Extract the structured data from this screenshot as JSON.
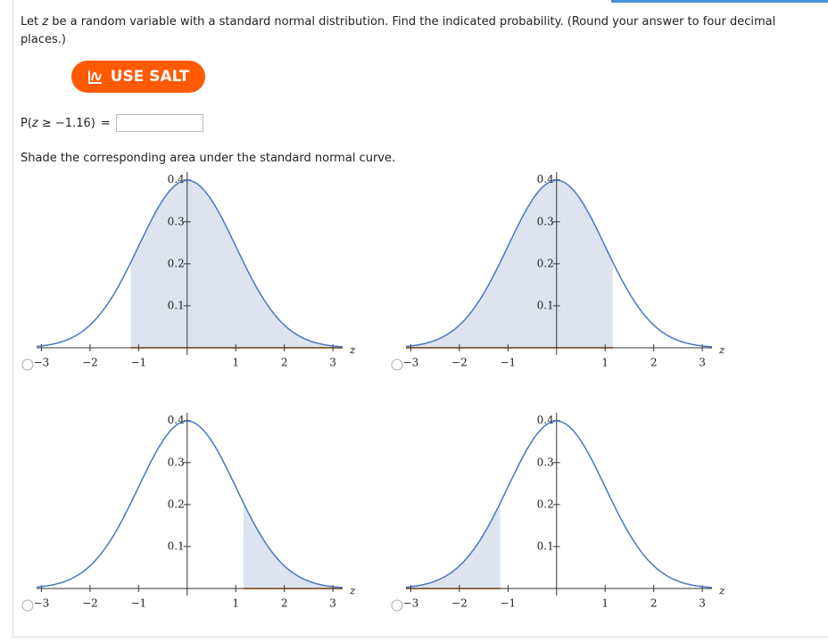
{
  "question": {
    "parts": [
      "Let ",
      "z",
      " be a random variable with a standard normal distribution. Find the indicated probability. (Round your answer to four decimal places.)"
    ]
  },
  "salt_button": "USE SALT",
  "probability": {
    "parts": [
      "P(",
      "z",
      " ≥ −1.16)",
      "="
    ]
  },
  "shade_prompt": "Shade the corresponding area under the standard normal curve.",
  "chart_data": [
    {
      "type": "area",
      "x_label": "z",
      "xlim": [
        -3.1,
        3.2
      ],
      "ylim": [
        0,
        0.41
      ],
      "shade": [
        -1.16,
        null
      ],
      "xticks": [
        {
          "value": -3,
          "label": "−3"
        },
        {
          "value": -2,
          "label": "−2"
        },
        {
          "value": -1,
          "label": "−1"
        },
        1,
        2,
        3
      ],
      "yticks": [
        0.1,
        0.2,
        0.3,
        0.4
      ],
      "color": "#4a77c0",
      "shade_color": "#dde4f0"
    },
    {
      "type": "area",
      "x_label": "z",
      "xlim": [
        -3.1,
        3.2
      ],
      "ylim": [
        0,
        0.41
      ],
      "shade": [
        null,
        1.16
      ],
      "xticks": [
        {
          "value": -3,
          "label": "−3"
        },
        {
          "value": -2,
          "label": "−2"
        },
        {
          "value": -1,
          "label": "−1"
        },
        1,
        2,
        3
      ],
      "yticks": [
        0.1,
        0.2,
        0.3,
        0.4
      ],
      "color": "#4a77c0",
      "shade_color": "#dde4f0"
    },
    {
      "type": "area",
      "x_label": "z",
      "xlim": [
        -3.1,
        3.2
      ],
      "ylim": [
        0,
        0.41
      ],
      "shade": [
        1.16,
        null
      ],
      "xticks": [
        {
          "value": -3,
          "label": "−3"
        },
        {
          "value": -2,
          "label": "−2"
        },
        {
          "value": -1,
          "label": "−1"
        },
        1,
        2,
        3
      ],
      "yticks": [
        0.1,
        0.2,
        0.3,
        0.4
      ],
      "color": "#4a77c0",
      "shade_color": "#dde4f0"
    },
    {
      "type": "area",
      "x_label": "z",
      "xlim": [
        -3.1,
        3.2
      ],
      "ylim": [
        0,
        0.41
      ],
      "shade": [
        null,
        -1.16
      ],
      "xticks": [
        {
          "value": -3,
          "label": "−3"
        },
        {
          "value": -2,
          "label": "−2"
        },
        {
          "value": -1,
          "label": "−1"
        },
        1,
        2,
        3
      ],
      "yticks": [
        0.1,
        0.2,
        0.3,
        0.4
      ],
      "color": "#4a77c0",
      "shade_color": "#dde4f0"
    }
  ]
}
